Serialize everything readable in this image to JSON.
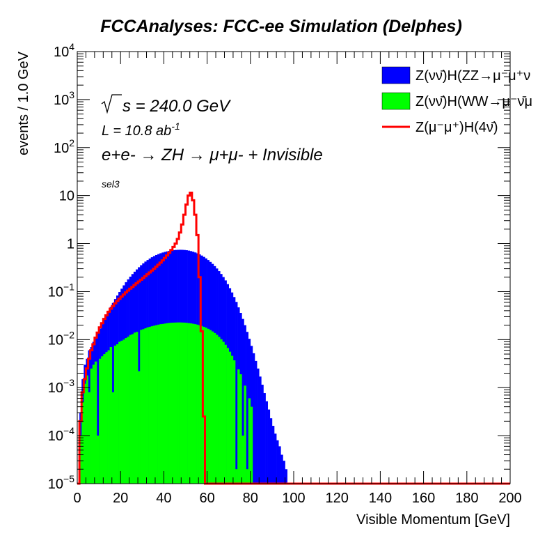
{
  "chart_data": {
    "type": "bar",
    "title": "FCCAnalyses: FCC-ee Simulation (Delphes)",
    "xlabel": "Visible Momentum [GeV]",
    "ylabel": "events / 1.0 GeV",
    "xlim": [
      0,
      200
    ],
    "ylim": [
      1e-05,
      10000
    ],
    "yscale": "log",
    "bin_width": 1.0,
    "x_ticks": [
      "0",
      "20",
      "40",
      "60",
      "80",
      "100",
      "120",
      "140",
      "160",
      "180",
      "200"
    ],
    "y_ticks": [
      {
        "value": 1e-05,
        "base": "10",
        "exp": "−5"
      },
      {
        "value": 0.0001,
        "base": "10",
        "exp": "−4"
      },
      {
        "value": 0.001,
        "base": "10",
        "exp": "−3"
      },
      {
        "value": 0.01,
        "base": "10",
        "exp": "−2"
      },
      {
        "value": 0.1,
        "base": "10",
        "exp": "−1"
      },
      {
        "value": 1,
        "base": "1",
        "exp": ""
      },
      {
        "value": 10,
        "base": "10",
        "exp": ""
      },
      {
        "value": 100,
        "base": "10",
        "exp": "2"
      },
      {
        "value": 1000,
        "base": "10",
        "exp": "3"
      },
      {
        "value": 10000,
        "base": "10",
        "exp": "4"
      }
    ],
    "annotations": {
      "sqrt_s": "s = 240.0 GeV",
      "lumi_prefix": "L = 10.8 ab",
      "lumi_exp": "-1",
      "process": "e+e- → ZH → μ+μ- + Invisible",
      "selection": "sel3"
    },
    "legend_position": "top-right",
    "series": [
      {
        "name": "Z(νν̄)H(ZZ→μ⁻μ⁺ν",
        "style": "filled",
        "color": "#0000ff",
        "stacked": true,
        "bin_edges_start": 0,
        "values": [
          1e-05,
          0.0003,
          0.0015,
          0.003,
          0.004,
          0.006,
          0.007,
          0.009,
          0.011,
          0.014,
          0.017,
          0.021,
          0.026,
          0.032,
          0.04,
          0.048,
          0.058,
          0.07,
          0.083,
          0.098,
          0.115,
          0.135,
          0.157,
          0.18,
          0.205,
          0.232,
          0.26,
          0.29,
          0.322,
          0.355,
          0.388,
          0.422,
          0.455,
          0.488,
          0.52,
          0.55,
          0.578,
          0.605,
          0.63,
          0.652,
          0.672,
          0.69,
          0.706,
          0.72,
          0.73,
          0.738,
          0.742,
          0.744,
          0.742,
          0.737,
          0.728,
          0.715,
          0.698,
          0.678,
          0.654,
          0.627,
          0.597,
          0.564,
          0.529,
          0.492,
          0.455,
          0.416,
          0.378,
          0.34,
          0.303,
          0.267,
          0.233,
          0.201,
          0.171,
          0.143,
          0.118,
          0.096,
          0.077,
          0.061,
          0.047,
          0.036,
          0.027,
          0.02,
          0.0145,
          0.0104,
          0.0074,
          0.0052,
          0.0036,
          0.0025,
          0.0017,
          0.00115,
          0.00077,
          0.00052,
          0.00035,
          0.00023,
          0.00016,
          0.00011,
          8e-05,
          6e-05,
          4e-05,
          3e-05,
          2e-05
        ]
      },
      {
        "name": "Z(νν̄)H(WW→μ⁻ν̄μ",
        "style": "filled",
        "color": "#00ff00",
        "stacked": true,
        "bin_edges_start": 0,
        "values": [
          1e-05,
          0.0001,
          0.0005,
          0.0012,
          0.0018,
          0.0008,
          0.0025,
          0.003,
          0.0035,
          0.0001,
          0.004,
          0.0045,
          0.005,
          0.0055,
          0.006,
          0.007,
          0.0008,
          0.0075,
          0.008,
          0.009,
          0.0095,
          0.01,
          0.0108,
          0.0115,
          0.0125,
          0.013,
          0.014,
          0.0145,
          0.0022,
          0.016,
          0.0165,
          0.0172,
          0.018,
          0.0185,
          0.019,
          0.0195,
          0.02,
          0.0205,
          0.021,
          0.0212,
          0.0216,
          0.022,
          0.0223,
          0.0225,
          0.0226,
          0.0227,
          0.0228,
          0.0228,
          0.0227,
          0.0226,
          0.0224,
          0.0221,
          0.0218,
          0.0214,
          0.021,
          0.0205,
          0.0199,
          0.0192,
          0.0185,
          0.0177,
          0.0168,
          0.0158,
          0.0148,
          0.0137,
          0.0126,
          0.0114,
          0.0102,
          0.009,
          0.0078,
          0.0067,
          0.0056,
          0.0046,
          0.0037,
          2e-05,
          0.0024,
          0.0019,
          0.0001,
          0.0011,
          2e-05,
          0.0006,
          0.0004,
          1e-05,
          1e-05,
          1e-05,
          1e-05,
          1e-05,
          1e-05,
          1e-05,
          1e-05,
          1e-05,
          1e-05,
          1e-05,
          1e-05,
          1e-05,
          1e-05,
          1e-05,
          1e-05
        ]
      },
      {
        "name": "Z(μ⁻μ⁺)H(4ν)",
        "style": "line",
        "color": "#ff0000",
        "stacked": false,
        "bin_edges_start": 0,
        "values": [
          1e-05,
          0.0002,
          0.0008,
          0.0015,
          0.0025,
          0.004,
          0.006,
          0.008,
          0.011,
          0.014,
          0.018,
          0.022,
          0.027,
          0.032,
          0.038,
          0.044,
          0.05,
          0.057,
          0.064,
          0.071,
          0.079,
          0.087,
          0.096,
          0.105,
          0.115,
          0.125,
          0.137,
          0.149,
          0.162,
          0.177,
          0.192,
          0.21,
          0.229,
          0.25,
          0.274,
          0.3,
          0.33,
          0.363,
          0.402,
          0.448,
          0.502,
          0.566,
          0.642,
          0.735,
          0.85,
          1.0,
          1.25,
          1.7,
          2.5,
          4.0,
          6.5,
          10.0,
          11.5,
          8.0,
          4.0,
          1.5,
          0.2,
          0.015,
          0.00025,
          1e-05,
          1e-05
        ]
      }
    ]
  },
  "legend": [
    {
      "label": "Z(νν̄)H(ZZ→μ⁻μ⁺ν",
      "color": "#0000ff",
      "kind": "box"
    },
    {
      "label": "Z(νν̄)H(WW→μ⁻ν̄μ",
      "color": "#00ff00",
      "kind": "box"
    },
    {
      "label": "Z(μ⁻μ⁺)H(4ν̄)",
      "color": "#ff0000",
      "kind": "line"
    }
  ]
}
